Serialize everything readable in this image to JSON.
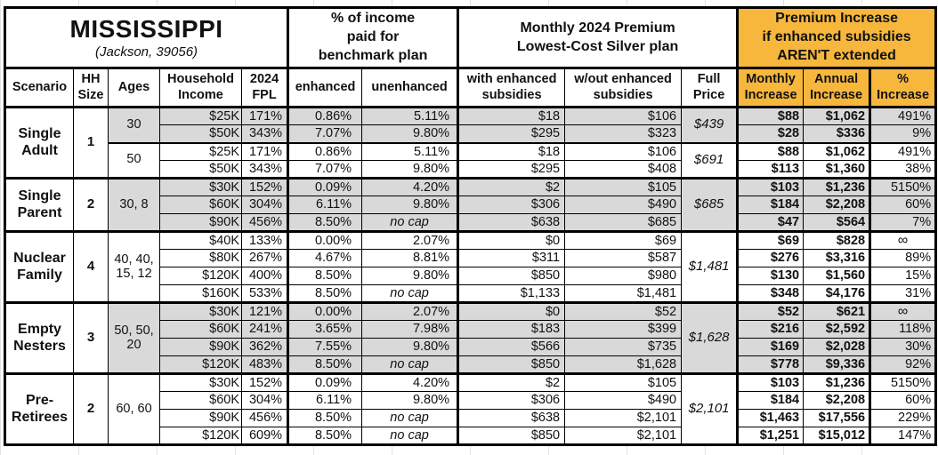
{
  "colors": {
    "accent_orange": "#F6B73C",
    "shade_gray": "#D9D9D9",
    "border_black": "#000000"
  },
  "title": {
    "state": "MISSISSIPPI",
    "location": "(Jackson, 39056)"
  },
  "header_groups": {
    "benchmark": "% of income\npaid for\nbenchmark plan",
    "premium": "Monthly 2024 Premium\nLowest-Cost Silver plan",
    "increase": "Premium Increase\nif enhanced subsidies\nAREN'T extended"
  },
  "columns": {
    "scenario": "Scenario",
    "hh_size": "HH Size",
    "ages": "Ages",
    "income": "Household Income",
    "fpl": "2024 FPL",
    "enhanced": "enhanced",
    "unenhanced": "unenhanced",
    "with_sub": "with enhanced subsidies",
    "wout_sub": "w/out enhanced subsidies",
    "full_price": "Full Price",
    "monthly": "Monthly Increase",
    "annual": "Annual Increase",
    "pct": "% Increase"
  },
  "table": {
    "groups": [
      {
        "scenario": "Single Adult",
        "hh": "1",
        "blocks": [
          {
            "ages": "30",
            "shaded": true,
            "full_price": "$439",
            "rows": [
              [
                "$25K",
                "171%",
                "0.86%",
                "5.11%",
                "$18",
                "$106",
                "$88",
                "$1,062",
                "491%"
              ],
              [
                "$50K",
                "343%",
                "7.07%",
                "9.80%",
                "$295",
                "$323",
                "$28",
                "$336",
                "9%"
              ]
            ]
          },
          {
            "ages": "50",
            "shaded": false,
            "full_price": "$691",
            "rows": [
              [
                "$25K",
                "171%",
                "0.86%",
                "5.11%",
                "$18",
                "$106",
                "$88",
                "$1,062",
                "491%"
              ],
              [
                "$50K",
                "343%",
                "7.07%",
                "9.80%",
                "$295",
                "$408",
                "$113",
                "$1,360",
                "38%"
              ]
            ]
          }
        ]
      },
      {
        "scenario": "Single Parent",
        "hh": "2",
        "blocks": [
          {
            "ages": "30, 8",
            "shaded": true,
            "full_price": "$685",
            "rows": [
              [
                "$30K",
                "152%",
                "0.09%",
                "4.20%",
                "$2",
                "$105",
                "$103",
                "$1,236",
                "5150%"
              ],
              [
                "$60K",
                "304%",
                "6.11%",
                "9.80%",
                "$306",
                "$490",
                "$184",
                "$2,208",
                "60%"
              ],
              [
                "$90K",
                "456%",
                "8.50%",
                "no cap",
                "$638",
                "$685",
                "$47",
                "$564",
                "7%"
              ]
            ]
          }
        ]
      },
      {
        "scenario": "Nuclear Family",
        "hh": "4",
        "blocks": [
          {
            "ages": "40, 40, 15, 12",
            "shaded": false,
            "full_price": "$1,481",
            "rows": [
              [
                "$40K",
                "133%",
                "0.00%",
                "2.07%",
                "$0",
                "$69",
                "$69",
                "$828",
                "∞"
              ],
              [
                "$80K",
                "267%",
                "4.67%",
                "8.81%",
                "$311",
                "$587",
                "$276",
                "$3,316",
                "89%"
              ],
              [
                "$120K",
                "400%",
                "8.50%",
                "9.80%",
                "$850",
                "$980",
                "$130",
                "$1,560",
                "15%"
              ],
              [
                "$160K",
                "533%",
                "8.50%",
                "no cap",
                "$1,133",
                "$1,481",
                "$348",
                "$4,176",
                "31%"
              ]
            ]
          }
        ]
      },
      {
        "scenario": "Empty Nesters",
        "hh": "3",
        "blocks": [
          {
            "ages": "50, 50, 20",
            "shaded": true,
            "full_price": "$1,628",
            "rows": [
              [
                "$30K",
                "121%",
                "0.00%",
                "2.07%",
                "$0",
                "$52",
                "$52",
                "$621",
                "∞"
              ],
              [
                "$60K",
                "241%",
                "3.65%",
                "7.98%",
                "$183",
                "$399",
                "$216",
                "$2,592",
                "118%"
              ],
              [
                "$90K",
                "362%",
                "7.55%",
                "9.80%",
                "$566",
                "$735",
                "$169",
                "$2,028",
                "30%"
              ],
              [
                "$120K",
                "483%",
                "8.50%",
                "no cap",
                "$850",
                "$1,628",
                "$778",
                "$9,336",
                "92%"
              ]
            ]
          }
        ]
      },
      {
        "scenario": "Pre-Retirees",
        "hh": "2",
        "blocks": [
          {
            "ages": "60, 60",
            "shaded": false,
            "full_price": "$2,101",
            "rows": [
              [
                "$30K",
                "152%",
                "0.09%",
                "4.20%",
                "$2",
                "$105",
                "$103",
                "$1,236",
                "5150%"
              ],
              [
                "$60K",
                "304%",
                "6.11%",
                "9.80%",
                "$306",
                "$490",
                "$184",
                "$2,208",
                "60%"
              ],
              [
                "$90K",
                "456%",
                "8.50%",
                "no cap",
                "$638",
                "$2,101",
                "$1,463",
                "$17,556",
                "229%"
              ],
              [
                "$120K",
                "609%",
                "8.50%",
                "no cap",
                "$850",
                "$2,101",
                "$1,251",
                "$15,012",
                "147%"
              ]
            ]
          }
        ]
      }
    ]
  }
}
